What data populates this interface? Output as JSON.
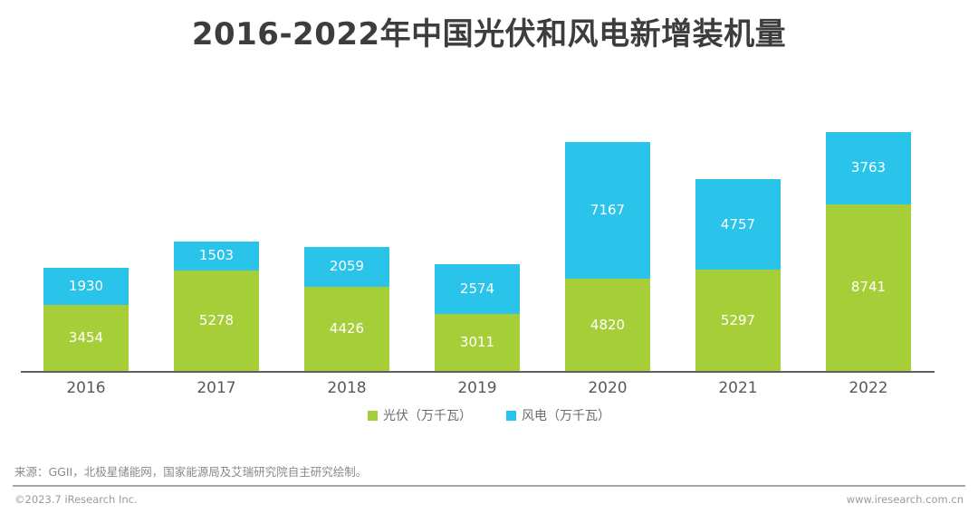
{
  "title": "2016-2022年中国光伏和风电新增装机量",
  "chart_data": {
    "type": "bar",
    "stacked": true,
    "title": "2016-2022年中国光伏和风电新增装机量",
    "categories": [
      "2016",
      "2017",
      "2018",
      "2019",
      "2020",
      "2021",
      "2022"
    ],
    "series": [
      {
        "name": "光伏（万千瓦）",
        "color": "#a6ce39",
        "values": [
          3454,
          5278,
          4426,
          3011,
          4820,
          5297,
          8741
        ]
      },
      {
        "name": "风电（万千瓦）",
        "color": "#2ac3ea",
        "values": [
          1930,
          1503,
          2059,
          2574,
          7167,
          4757,
          3763
        ]
      }
    ],
    "xlabel": "",
    "ylabel": "",
    "ylim": [
      0,
      12800
    ],
    "grid": false,
    "legend_position": "bottom-center",
    "value_labels": "inside segments, white text"
  },
  "legend": {
    "items": [
      {
        "label": "光伏（万千瓦）",
        "color": "#a6ce39"
      },
      {
        "label": "风电（万千瓦）",
        "color": "#2ac3ea"
      }
    ]
  },
  "source_note": "来源：GGII，北极星储能网，国家能源局及艾瑞研究院自主研究绘制。",
  "footer": {
    "copyright": "©2023.7 iResearch Inc.",
    "website": "www.iresearch.com.cn"
  },
  "colors": {
    "pv_green": "#a6ce39",
    "wind_blue": "#2ac3ea",
    "title_text": "#3d3d3d",
    "axis_line": "#606060",
    "tick_text": "#595959",
    "legend_text": "#6b6b6b",
    "source_text": "#8a8a8a",
    "footer_text": "#9b9b9b",
    "background": "#ffffff"
  }
}
